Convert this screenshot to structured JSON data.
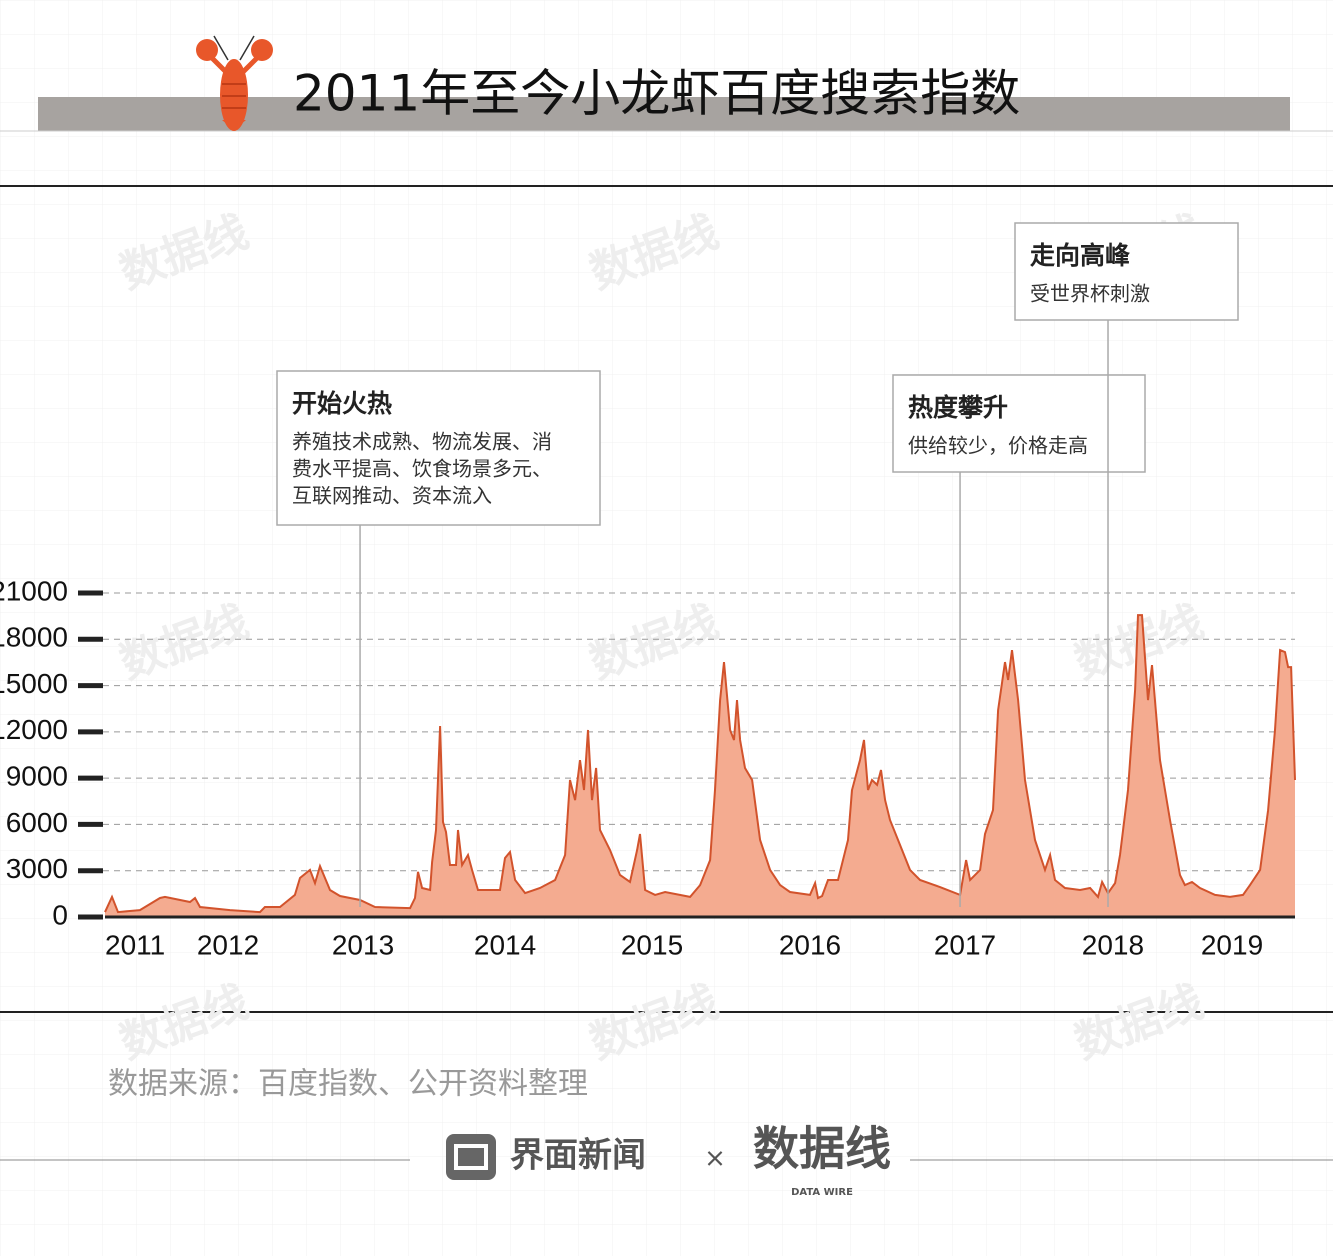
{
  "chart_data": {
    "type": "area",
    "title": "2011年至今小龙虾百度搜索指数",
    "source": "数据来源：百度指数、公开资料整理",
    "footer": {
      "brand": "界面新闻",
      "separator": "×",
      "partner": "数据线",
      "partner_sub": "DATA WIRE"
    },
    "watermark": "数据线",
    "color": "#f4ab90",
    "line_color": "#d2532c",
    "grid": true,
    "ylim": [
      0,
      21000
    ],
    "yticks": [
      0,
      3000,
      6000,
      9000,
      12000,
      15000,
      18000,
      21000
    ],
    "xlim": [
      2011,
      2019.445
    ],
    "xticks": [
      {
        "value": 2011,
        "label": "2011"
      },
      {
        "value": 2011.873,
        "label": "2012"
      },
      {
        "value": 2012.831,
        "label": "2013"
      },
      {
        "value": 2013.839,
        "label": "2014"
      },
      {
        "value": 2014.882,
        "label": "2015"
      },
      {
        "value": 2016.003,
        "label": "2016"
      },
      {
        "value": 2017.103,
        "label": "2017"
      },
      {
        "value": 2018.153,
        "label": "2018"
      },
      {
        "value": 2018.998,
        "label": "2019"
      }
    ],
    "annotations": [
      {
        "x": 2012.81,
        "title": "开始火热",
        "lines": [
          "养殖技术成熟、物流发展、消",
          "费水平提高、饮食场景多元、",
          "互联网推动、资本流入"
        ]
      },
      {
        "x": 2017.068,
        "title": "热度攀升",
        "lines": [
          "供给较少，价格走高"
        ]
      },
      {
        "x": 2018.118,
        "title": "走向高峰",
        "lines": [
          "受世界杯刺激"
        ]
      }
    ],
    "x": [
      2011.0,
      2011.05,
      2011.092,
      2011.248,
      2011.39,
      2011.426,
      2011.603,
      2011.639,
      2011.674,
      2011.887,
      2012.1,
      2012.135,
      2012.242,
      2012.348,
      2012.384,
      2012.455,
      2012.49,
      2012.526,
      2012.597,
      2012.668,
      2012.81,
      2012.916,
      2013.165,
      2013.2,
      2013.221,
      2013.25,
      2013.307,
      2013.321,
      2013.349,
      2013.378,
      2013.399,
      2013.42,
      2013.448,
      2013.491,
      2013.505,
      2013.534,
      2013.576,
      2013.605,
      2013.647,
      2013.803,
      2013.839,
      2013.874,
      2013.91,
      2013.981,
      2014.087,
      2014.194,
      2014.265,
      2014.3,
      2014.336,
      2014.371,
      2014.399,
      2014.428,
      2014.456,
      2014.485,
      2014.513,
      2014.584,
      2014.655,
      2014.726,
      2014.776,
      2014.797,
      2014.833,
      2014.904,
      2014.975,
      2015.152,
      2015.223,
      2015.294,
      2015.329,
      2015.365,
      2015.393,
      2015.436,
      2015.464,
      2015.485,
      2015.507,
      2015.542,
      2015.592,
      2015.649,
      2015.72,
      2015.791,
      2015.861,
      2016.003,
      2016.039,
      2016.06,
      2016.089,
      2016.131,
      2016.202,
      2016.273,
      2016.301,
      2016.358,
      2016.386,
      2016.415,
      2016.443,
      2016.479,
      2016.507,
      2016.536,
      2016.571,
      2016.642,
      2016.713,
      2016.784,
      2016.926,
      2017.068,
      2017.111,
      2017.139,
      2017.21,
      2017.245,
      2017.302,
      2017.338,
      2017.387,
      2017.409,
      2017.437,
      2017.48,
      2017.529,
      2017.6,
      2017.671,
      2017.707,
      2017.742,
      2017.813,
      2017.92,
      2017.991,
      2018.047,
      2018.076,
      2018.118,
      2018.168,
      2018.203,
      2018.26,
      2018.31,
      2018.331,
      2018.359,
      2018.402,
      2018.43,
      2018.487,
      2018.558,
      2018.629,
      2018.664,
      2018.714,
      2018.771,
      2018.877,
      2018.984,
      2019.076,
      2019.126,
      2019.197,
      2019.254,
      2019.303,
      2019.339,
      2019.374,
      2019.396,
      2019.417,
      2019.445
    ],
    "values": [
      320,
      1300,
      320,
      450,
      1230,
      1300,
      970,
      1230,
      650,
      450,
      320,
      650,
      650,
      1430,
      2530,
      3050,
      2200,
      3300,
      1750,
      1360,
      1100,
      650,
      580,
      1230,
      2920,
      1880,
      1750,
      3560,
      5640,
      12380,
      6160,
      5510,
      3370,
      3370,
      5640,
      3370,
      4020,
      3040,
      1750,
      1750,
      3820,
      4210,
      2400,
      1550,
      1880,
      2400,
      4020,
      8880,
      7580,
      10170,
      8230,
      12120,
      7580,
      9660,
      5640,
      4340,
      2720,
      2270,
      4340,
      5380,
      1750,
      1430,
      1620,
      1300,
      2070,
      3690,
      8230,
      14060,
      16520,
      12120,
      11470,
      14060,
      11470,
      9660,
      8880,
      4990,
      3050,
      2070,
      1620,
      1430,
      2200,
      1230,
      1360,
      2400,
      2400,
      4990,
      8230,
      10170,
      11470,
      8230,
      8880,
      8560,
      9530,
      7580,
      6290,
      4670,
      3050,
      2400,
      1940,
      1430,
      3690,
      2400,
      3050,
      5380,
      6930,
      13410,
      16520,
      15360,
      17300,
      14060,
      8880,
      4990,
      3050,
      4020,
      2400,
      1880,
      1750,
      1880,
      1300,
      2270,
      1550,
      2200,
      4020,
      8230,
      14710,
      19570,
      19570,
      14060,
      16330,
      10170,
      6290,
      2720,
      2070,
      2270,
      1880,
      1430,
      1300,
      1430,
      2070,
      3050,
      6930,
      12120,
      17300,
      17170,
      16200,
      16200,
      8880
    ]
  }
}
